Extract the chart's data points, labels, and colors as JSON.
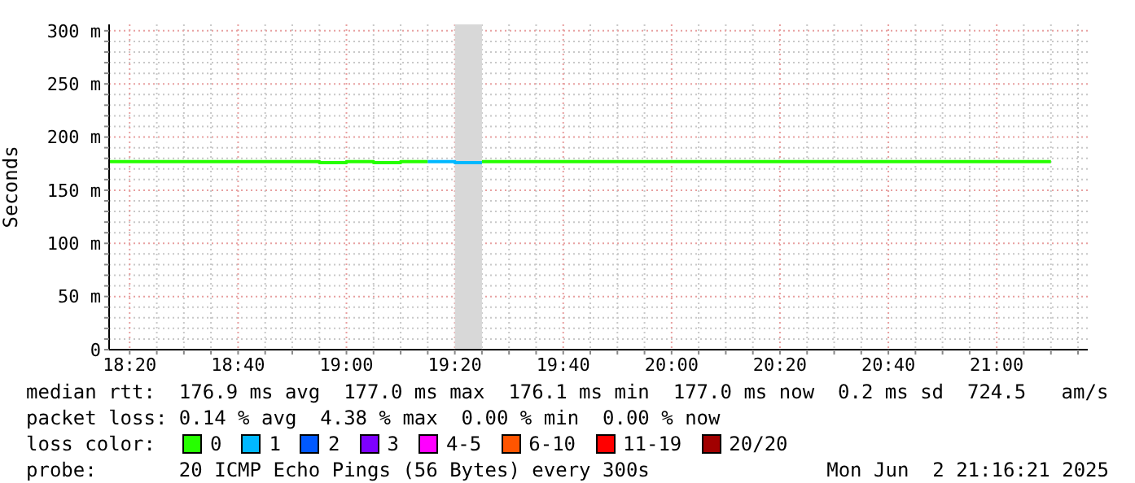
{
  "chart_data": {
    "type": "step",
    "ylabel": "Seconds",
    "legend_title": "loss color:",
    "legend": "bottom",
    "grid": true,
    "x": [
      18.27,
      18.3333,
      18.4167,
      18.5,
      18.5833,
      18.6667,
      18.75,
      18.8333,
      18.9167,
      19,
      19.0833,
      19.1667,
      19.25,
      19.3333,
      19.4167,
      19.5,
      19.5833,
      19.6667,
      19.75,
      19.8333,
      19.9167,
      20,
      20.0833,
      20.1667,
      20.25,
      20.3333,
      20.4167,
      20.5,
      20.5833,
      20.6667,
      20.75,
      20.8333,
      20.9167,
      21,
      21.0833,
      21.1667
    ],
    "series": [
      {
        "name": "0",
        "color": "#26ff00",
        "values": [
          177,
          177,
          177,
          177,
          177,
          177,
          177,
          177,
          176,
          177,
          176,
          177,
          177,
          null,
          177,
          177,
          177,
          177,
          177,
          177,
          177,
          177,
          177,
          177,
          177,
          177,
          177,
          177,
          177,
          177,
          177,
          177,
          177,
          177,
          177,
          177
        ]
      },
      {
        "name": "1",
        "color": "#00b8ff",
        "values": [
          null,
          null,
          null,
          null,
          null,
          null,
          null,
          null,
          null,
          null,
          null,
          null,
          177,
          176,
          176,
          null,
          null,
          null,
          null,
          null,
          null,
          null,
          null,
          null,
          null,
          null,
          null,
          null,
          null,
          null,
          null,
          null,
          null,
          null,
          null,
          null
        ]
      },
      {
        "name": "2",
        "color": "#0059ff",
        "values": [
          null,
          null,
          null,
          null,
          null,
          null,
          null,
          null,
          null,
          null,
          null,
          null,
          null,
          null,
          null,
          null,
          null,
          null,
          null,
          null,
          null,
          null,
          null,
          null,
          null,
          null,
          null,
          null,
          null,
          null,
          null,
          null,
          null,
          null,
          null,
          null
        ]
      },
      {
        "name": "3",
        "color": "#7e00ff",
        "values": [
          null,
          null,
          null,
          null,
          null,
          null,
          null,
          null,
          null,
          null,
          null,
          null,
          null,
          null,
          null,
          null,
          null,
          null,
          null,
          null,
          null,
          null,
          null,
          null,
          null,
          null,
          null,
          null,
          null,
          null,
          null,
          null,
          null,
          null,
          null,
          null
        ]
      },
      {
        "name": "4-5",
        "color": "#ff00ff",
        "values": [
          null,
          null,
          null,
          null,
          null,
          null,
          null,
          null,
          null,
          null,
          null,
          null,
          null,
          null,
          null,
          null,
          null,
          null,
          null,
          null,
          null,
          null,
          null,
          null,
          null,
          null,
          null,
          null,
          null,
          null,
          null,
          null,
          null,
          null,
          null,
          null
        ]
      },
      {
        "name": "6-10",
        "color": "#ff5500",
        "values": [
          null,
          null,
          null,
          null,
          null,
          null,
          null,
          null,
          null,
          null,
          null,
          null,
          null,
          null,
          null,
          null,
          null,
          null,
          null,
          null,
          null,
          null,
          null,
          null,
          null,
          null,
          null,
          null,
          null,
          null,
          null,
          null,
          null,
          null,
          null,
          null
        ]
      },
      {
        "name": "11-19",
        "color": "#ff0000",
        "values": [
          null,
          null,
          null,
          null,
          null,
          null,
          null,
          null,
          null,
          null,
          null,
          null,
          null,
          null,
          null,
          null,
          null,
          null,
          null,
          null,
          null,
          null,
          null,
          null,
          null,
          null,
          null,
          null,
          null,
          null,
          null,
          null,
          null,
          null,
          null,
          null
        ]
      },
      {
        "name": "20/20",
        "color": "#a10000",
        "values": [
          null,
          null,
          null,
          null,
          null,
          null,
          null,
          null,
          null,
          null,
          null,
          null,
          null,
          null,
          null,
          null,
          null,
          null,
          null,
          null,
          null,
          null,
          null,
          null,
          null,
          null,
          null,
          null,
          null,
          null,
          null,
          null,
          null,
          null,
          null,
          null
        ]
      }
    ],
    "xlim": [
      18.27,
      21.28
    ],
    "xticks": [
      {
        "value": 18.3333,
        "label": "18:20"
      },
      {
        "value": 18.4167,
        "label": null
      },
      {
        "value": 18.5,
        "label": null
      },
      {
        "value": 18.5833,
        "label": null
      },
      {
        "value": 18.6667,
        "label": "18:40"
      },
      {
        "value": 18.75,
        "label": null
      },
      {
        "value": 18.8333,
        "label": null
      },
      {
        "value": 18.9167,
        "label": null
      },
      {
        "value": 19,
        "label": "19:00"
      },
      {
        "value": 19.0833,
        "label": null
      },
      {
        "value": 19.1667,
        "label": null
      },
      {
        "value": 19.25,
        "label": null
      },
      {
        "value": 19.3333,
        "label": "19:20"
      },
      {
        "value": 19.4167,
        "label": null
      },
      {
        "value": 19.5,
        "label": null
      },
      {
        "value": 19.5833,
        "label": null
      },
      {
        "value": 19.6667,
        "label": "19:40"
      },
      {
        "value": 19.75,
        "label": null
      },
      {
        "value": 19.8333,
        "label": null
      },
      {
        "value": 19.9167,
        "label": null
      },
      {
        "value": 20,
        "label": "20:00"
      },
      {
        "value": 20.0833,
        "label": null
      },
      {
        "value": 20.1667,
        "label": null
      },
      {
        "value": 20.25,
        "label": null
      },
      {
        "value": 20.3333,
        "label": "20:20"
      },
      {
        "value": 20.4167,
        "label": null
      },
      {
        "value": 20.5,
        "label": null
      },
      {
        "value": 20.5833,
        "label": null
      },
      {
        "value": 20.6667,
        "label": "20:40"
      },
      {
        "value": 20.75,
        "label": null
      },
      {
        "value": 20.8333,
        "label": null
      },
      {
        "value": 20.9167,
        "label": null
      },
      {
        "value": 21,
        "label": "21:00"
      },
      {
        "value": 21.0833,
        "label": null
      },
      {
        "value": 21.1667,
        "label": null
      },
      {
        "value": 21.25,
        "label": null
      }
    ],
    "ylim": [
      0,
      306
    ],
    "yticks": [
      0,
      {
        "value": 10,
        "label": null
      },
      {
        "value": 20,
        "label": null
      },
      {
        "value": 30,
        "label": null
      },
      {
        "value": 40,
        "label": null
      },
      {
        "value": 50,
        "label": "50 m"
      },
      {
        "value": 60,
        "label": null
      },
      {
        "value": 70,
        "label": null
      },
      {
        "value": 80,
        "label": null
      },
      {
        "value": 90,
        "label": null
      },
      {
        "value": 100,
        "label": "100 m"
      },
      {
        "value": 110,
        "label": null
      },
      {
        "value": 120,
        "label": null
      },
      {
        "value": 130,
        "label": null
      },
      {
        "value": 140,
        "label": null
      },
      {
        "value": 150,
        "label": "150 m"
      },
      {
        "value": 160,
        "label": null
      },
      {
        "value": 170,
        "label": null
      },
      {
        "value": 180,
        "label": null
      },
      {
        "value": 190,
        "label": null
      },
      {
        "value": 200,
        "label": "200 m"
      },
      {
        "value": 210,
        "label": null
      },
      {
        "value": 220,
        "label": null
      },
      {
        "value": 230,
        "label": null
      },
      {
        "value": 240,
        "label": null
      },
      {
        "value": 250,
        "label": "250 m"
      },
      {
        "value": 260,
        "label": null
      },
      {
        "value": 270,
        "label": null
      },
      {
        "value": 280,
        "label": null
      },
      {
        "value": 290,
        "label": null
      },
      {
        "value": 300,
        "label": "300 m"
      }
    ],
    "bands": [
      {
        "axis": "x",
        "from": 19.3333,
        "to": 19.4167,
        "color": "#d8d8d8"
      }
    ],
    "annotations": [
      "median rtt:  176.9 ms avg  177.0 ms max  176.1 ms min  177.0 ms now  0.2 ms sd  724.5   am/s",
      "packet loss: 0.14 % avg  4.38 % max  0.00 % min  0.00 % now",
      "probe:       20 ICMP Echo Pings (56 Bytes) every 300s",
      "Mon Jun  2 21:16:21 2025"
    ]
  }
}
